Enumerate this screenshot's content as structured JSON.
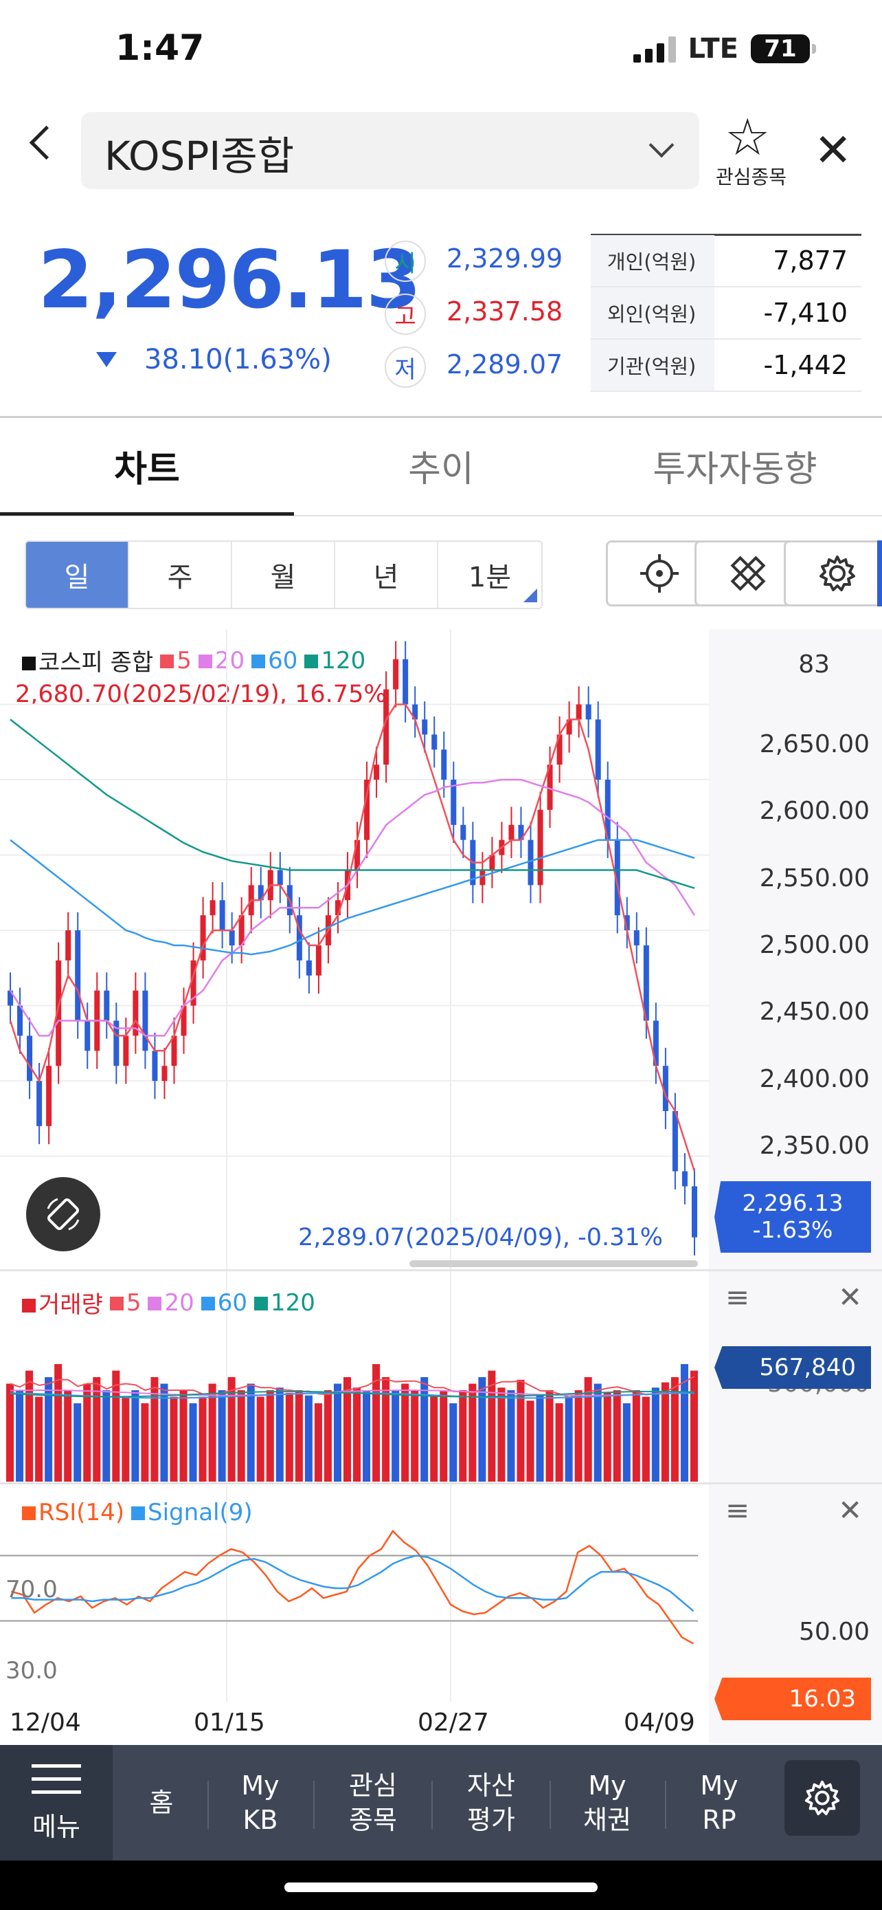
{
  "status_bar": {
    "time": "1:47",
    "network": "LTE",
    "battery": "71"
  },
  "header": {
    "title": "KOSPI종합",
    "favorite_label": "관심종목"
  },
  "quote": {
    "price": "2,296.13",
    "change": "38.10(1.63%)",
    "direction": "down",
    "open_label": "시",
    "open": "2,329.99",
    "high_label": "고",
    "high": "2,337.58",
    "low_label": "저",
    "low": "2,289.07"
  },
  "investors": [
    {
      "label": "개인(억원)",
      "value": "7,877"
    },
    {
      "label": "외인(억원)",
      "value": "-7,410"
    },
    {
      "label": "기관(억원)",
      "value": "-1,442"
    }
  ],
  "tabs": [
    "차트",
    "추이",
    "투자자동향"
  ],
  "periods": [
    "일",
    "주",
    "월",
    "년",
    "1분"
  ],
  "price_chart": {
    "legend": {
      "main": "코스피 종합",
      "ma": [
        "5",
        "20",
        "60",
        "120"
      ]
    },
    "high_note": "2,680.70(2025/02/19), 16.75%",
    "low_note": "2,289.07(2025/04/09), -0.31%",
    "y_labels": [
      "83",
      "2,650.00",
      "2,600.00",
      "2,550.00",
      "2,500.00",
      "2,450.00",
      "2,400.00",
      "2,350.00"
    ],
    "current_price": "2,296.13",
    "current_change": "-1.63%"
  },
  "volume_chart": {
    "legend": {
      "main": "거래량",
      "ma": [
        "5",
        "20",
        "60",
        "120"
      ]
    },
    "current": "567,840",
    "y_label_partial": "500,000"
  },
  "rsi_chart": {
    "legend": {
      "rsi": "RSI(14)",
      "signal": "Signal(9)"
    },
    "levels": [
      "70.0",
      "30.0"
    ],
    "y_label": "50.00",
    "current": "16.03"
  },
  "x_labels": [
    "12/04",
    "01/15",
    "02/27",
    "04/09"
  ],
  "bottom_nav": {
    "menu": "메뉴",
    "items": [
      "홈",
      "My\nKB",
      "관심\n종목",
      "자산\n평가",
      "My\n채권",
      "My\nRP"
    ]
  },
  "colors": {
    "up": "#e0222e",
    "down": "#2b5fd9",
    "ma5": "#f0505a",
    "ma20": "#e07ee8",
    "ma60": "#3399ee",
    "ma120": "#119988"
  },
  "chart_data": [
    {
      "type": "line",
      "title": "",
      "xlabel": "",
      "ylabel": "",
      "ylim": [
        2280,
        2700
      ],
      "x_ticks": [
        "12/04",
        "01/15",
        "02/27",
        "04/09"
      ],
      "candles_close": [
        2450,
        2430,
        2400,
        2370,
        2410,
        2480,
        2500,
        2440,
        2420,
        2460,
        2440,
        2410,
        2430,
        2460,
        2420,
        2400,
        2410,
        2430,
        2450,
        2480,
        2510,
        2520,
        2500,
        2490,
        2510,
        2530,
        2520,
        2540,
        2530,
        2510,
        2480,
        2470,
        2490,
        2510,
        2520,
        2540,
        2560,
        2600,
        2610,
        2660,
        2680,
        2650,
        2640,
        2630,
        2620,
        2600,
        2570,
        2560,
        2530,
        2540,
        2550,
        2560,
        2570,
        2560,
        2530,
        2580,
        2610,
        2630,
        2640,
        2650,
        2640,
        2600,
        2560,
        2510,
        2500,
        2490,
        2440,
        2410,
        2380,
        2340,
        2330,
        2296.13
      ],
      "series": [
        {
          "name": "5",
          "values": [
            2440,
            2420,
            2410,
            2400,
            2420,
            2450,
            2470,
            2460,
            2440,
            2440,
            2440,
            2430,
            2430,
            2440,
            2430,
            2420,
            2420,
            2430,
            2450,
            2470,
            2490,
            2500,
            2500,
            2500,
            2510,
            2520,
            2520,
            2530,
            2530,
            2520,
            2500,
            2490,
            2490,
            2500,
            2510,
            2530,
            2560,
            2590,
            2620,
            2640,
            2650,
            2650,
            2640,
            2620,
            2600,
            2580,
            2560,
            2550,
            2545,
            2545,
            2550,
            2555,
            2560,
            2560,
            2570,
            2590,
            2610,
            2630,
            2640,
            2640,
            2620,
            2590,
            2560,
            2530,
            2500,
            2470,
            2440,
            2410,
            2390,
            2380,
            2360,
            2340
          ]
        },
        {
          "name": "20",
          "values": [
            2460,
            2450,
            2440,
            2430,
            2430,
            2440,
            2440,
            2440,
            2440,
            2440,
            2440,
            2435,
            2435,
            2435,
            2430,
            2430,
            2430,
            2440,
            2450,
            2455,
            2460,
            2470,
            2480,
            2485,
            2490,
            2500,
            2505,
            2510,
            2515,
            2515,
            2515,
            2515,
            2515,
            2520,
            2525,
            2530,
            2540,
            2550,
            2560,
            2570,
            2575,
            2580,
            2585,
            2590,
            2592,
            2595,
            2596,
            2597,
            2598,
            2598,
            2599,
            2600,
            2600,
            2600,
            2598,
            2596,
            2594,
            2592,
            2590,
            2588,
            2585,
            2580,
            2575,
            2570,
            2565,
            2555,
            2545,
            2540,
            2535,
            2530,
            2520,
            2510
          ]
        },
        {
          "name": "60",
          "values": [
            2560,
            2555,
            2550,
            2545,
            2540,
            2535,
            2530,
            2525,
            2520,
            2515,
            2510,
            2505,
            2500,
            2498,
            2495,
            2493,
            2492,
            2490,
            2490,
            2489,
            2488,
            2487,
            2486,
            2485,
            2485,
            2484,
            2485,
            2486,
            2488,
            2490,
            2493,
            2496,
            2499,
            2502,
            2505,
            2508,
            2510,
            2512,
            2514,
            2516,
            2518,
            2520,
            2522,
            2524,
            2526,
            2528,
            2530,
            2532,
            2534,
            2536,
            2538,
            2540,
            2542,
            2544,
            2546,
            2548,
            2550,
            2552,
            2554,
            2556,
            2558,
            2560,
            2560,
            2560,
            2560,
            2560,
            2558,
            2556,
            2554,
            2552,
            2550,
            2548
          ]
        },
        {
          "name": "120",
          "values": [
            2640,
            2635,
            2630,
            2625,
            2620,
            2615,
            2610,
            2605,
            2600,
            2595,
            2590,
            2586,
            2582,
            2578,
            2574,
            2570,
            2566,
            2562,
            2558,
            2555,
            2552,
            2550,
            2548,
            2546,
            2545,
            2544,
            2543,
            2542,
            2541,
            2540,
            2540,
            2540,
            2540,
            2540,
            2540,
            2540,
            2540,
            2540,
            2540,
            2540,
            2540,
            2540,
            2540,
            2540,
            2540,
            2540,
            2540,
            2540,
            2540,
            2540,
            2540,
            2540,
            2540,
            2540,
            2540,
            2540,
            2540,
            2540,
            2540,
            2540,
            2540,
            2540,
            2540,
            2540,
            2540,
            2540,
            2538,
            2536,
            2534,
            2532,
            2530,
            2528
          ]
        }
      ]
    },
    {
      "type": "bar",
      "title": "",
      "values": [
        0.75,
        0.7,
        0.85,
        0.65,
        0.8,
        0.9,
        0.7,
        0.6,
        0.75,
        0.8,
        0.7,
        0.85,
        0.65,
        0.7,
        0.6,
        0.8,
        0.75,
        0.65,
        0.7,
        0.6,
        0.65,
        0.75,
        0.7,
        0.8,
        0.7,
        0.75,
        0.65,
        0.7,
        0.72,
        0.68,
        0.7,
        0.66,
        0.6,
        0.7,
        0.75,
        0.8,
        0.72,
        0.7,
        0.9,
        0.8,
        0.7,
        0.75,
        0.7,
        0.8,
        0.65,
        0.7,
        0.6,
        0.7,
        0.75,
        0.8,
        0.85,
        0.72,
        0.7,
        0.78,
        0.62,
        0.66,
        0.7,
        0.6,
        0.65,
        0.7,
        0.8,
        0.75,
        0.68,
        0.7,
        0.6,
        0.7,
        0.65,
        0.72,
        0.76,
        0.8,
        0.9,
        0.85
      ]
    },
    {
      "type": "line",
      "title": "",
      "ylim": [
        10,
        90
      ],
      "series": [
        {
          "name": "RSI(14)",
          "values": [
            48,
            46,
            35,
            40,
            44,
            42,
            45,
            38,
            42,
            44,
            40,
            45,
            42,
            50,
            55,
            60,
            58,
            65,
            70,
            74,
            72,
            66,
            58,
            48,
            42,
            45,
            50,
            44,
            46,
            48,
            62,
            70,
            74,
            85,
            78,
            73,
            64,
            52,
            40,
            36,
            34,
            35,
            40,
            45,
            47,
            44,
            38,
            42,
            48,
            72,
            76,
            70,
            60,
            62,
            55,
            45,
            40,
            30,
            20,
            16.03
          ]
        },
        {
          "name": "Signal(9)",
          "values": [
            44,
            44,
            43,
            43,
            43,
            43,
            43,
            42,
            43,
            43,
            43,
            44,
            44,
            46,
            48,
            51,
            53,
            56,
            60,
            64,
            67,
            68,
            66,
            62,
            58,
            55,
            53,
            51,
            50,
            50,
            52,
            56,
            60,
            65,
            68,
            70,
            69,
            66,
            62,
            57,
            52,
            48,
            45,
            44,
            44,
            44,
            43,
            43,
            44,
            50,
            56,
            60,
            60,
            60,
            58,
            55,
            52,
            48,
            42,
            36
          ]
        }
      ]
    }
  ]
}
